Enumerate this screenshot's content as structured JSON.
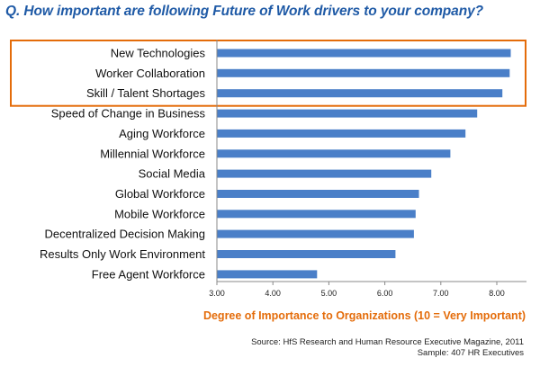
{
  "title": "Q. How important are following Future of Work drivers to your company?",
  "source": "Source: HfS Research and Human Resource Executive Magazine, 2011",
  "sample": "Sample:  407 HR Executives",
  "colors": {
    "bar": "#4a7fc8",
    "title": "#1f5aa6",
    "xlabel": "#e46c0a",
    "highlight_box": "#e46c0a"
  },
  "chart_data": {
    "type": "bar",
    "orientation": "horizontal",
    "title": "Q. How important are following Future of Work drivers to your company?",
    "xlabel": "Degree of Importance to Organizations (10 = Very Important)",
    "ylabel": "",
    "xlim": [
      3.0,
      8.3
    ],
    "xticks": [
      "3.00",
      "4.00",
      "5.00",
      "6.00",
      "7.00",
      "8.00"
    ],
    "tick_values": [
      3,
      4,
      5,
      6,
      7,
      8
    ],
    "grid": false,
    "highlighted_categories": [
      "New Technologies",
      "Worker Collaboration",
      "Skill / Talent Shortages"
    ],
    "categories": [
      "New Technologies",
      "Worker Collaboration",
      "Skill / Talent Shortages",
      "Speed of Change in Business",
      "Aging Workforce",
      "Millennial Workforce",
      "Social Media",
      "Global Workforce",
      "Mobile Workforce",
      "Decentralized Decision Making",
      "Results Only Work Environment",
      "Free Agent Workforce"
    ],
    "values": [
      8.25,
      8.23,
      8.1,
      7.65,
      7.44,
      7.17,
      6.83,
      6.61,
      6.55,
      6.52,
      6.19,
      4.79
    ]
  }
}
